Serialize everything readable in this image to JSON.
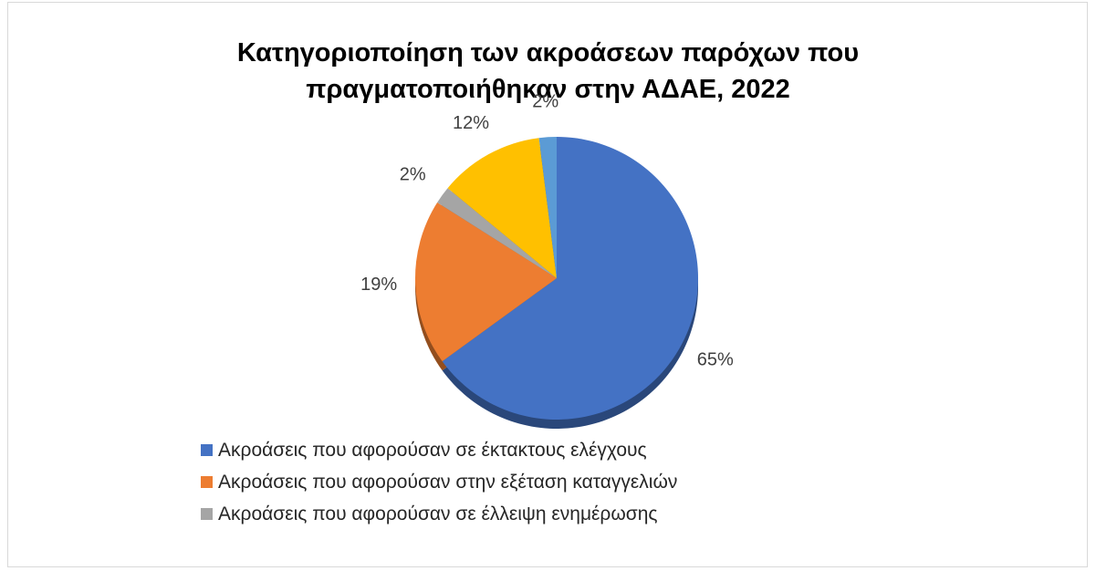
{
  "chart_data": {
    "type": "pie",
    "title_lines": [
      "Κατηγοριοποίηση των ακροάσεων παρόχων που",
      "πραγματοποιήθηκαν στην ΑΔΑΕ, 2022"
    ],
    "slices": [
      {
        "label": "Ακροάσεις που αφορούσαν σε έκτακτους ελέγχους",
        "value": 65,
        "display": "65%",
        "color": "#4472C4",
        "legend": true
      },
      {
        "label": "Ακροάσεις που αφορούσαν στην εξέταση καταγγελιών",
        "value": 19,
        "display": "19%",
        "color": "#ED7D31",
        "legend": true
      },
      {
        "label": "Ακροάσεις που αφορούσαν σε έλλειψη ενημέρωσης",
        "value": 2,
        "display": "2%",
        "color": "#A5A5A5",
        "legend": true
      },
      {
        "label": "",
        "value": 12,
        "display": "12%",
        "color": "#FFC000",
        "legend": false
      },
      {
        "label": "",
        "value": 2,
        "display": "2%",
        "color": "#5B9BD5",
        "legend": false
      }
    ],
    "legend_position": "bottom"
  }
}
